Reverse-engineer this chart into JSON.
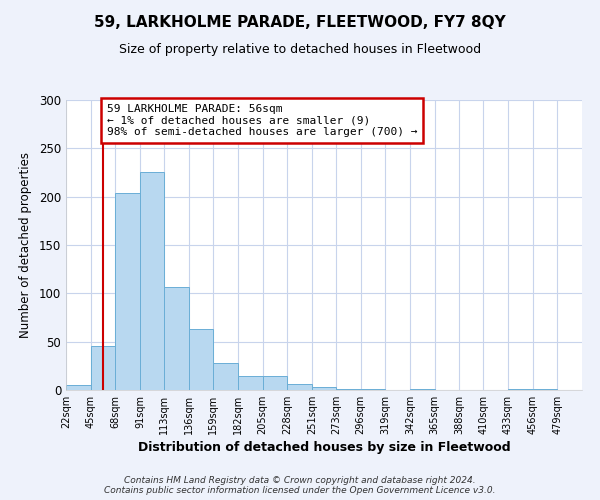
{
  "title": "59, LARKHOLME PARADE, FLEETWOOD, FY7 8QY",
  "subtitle": "Size of property relative to detached houses in Fleetwood",
  "xlabel": "Distribution of detached houses by size in Fleetwood",
  "ylabel": "Number of detached properties",
  "bar_color": "#b8d8f0",
  "bar_edge_color": "#6aaed6",
  "bar_left_edges": [
    22,
    45,
    68,
    91,
    113,
    136,
    159,
    182,
    205,
    228,
    251,
    273,
    296,
    319,
    342,
    365,
    388,
    410,
    433,
    456
  ],
  "bar_widths": [
    23,
    23,
    23,
    22,
    23,
    23,
    23,
    23,
    23,
    23,
    22,
    23,
    23,
    23,
    23,
    23,
    22,
    23,
    23,
    23
  ],
  "bar_heights": [
    5,
    46,
    204,
    226,
    107,
    63,
    28,
    15,
    14,
    6,
    3,
    1,
    1,
    0,
    1,
    0,
    0,
    0,
    1,
    1
  ],
  "x_tick_labels": [
    "22sqm",
    "45sqm",
    "68sqm",
    "91sqm",
    "113sqm",
    "136sqm",
    "159sqm",
    "182sqm",
    "205sqm",
    "228sqm",
    "251sqm",
    "273sqm",
    "296sqm",
    "319sqm",
    "342sqm",
    "365sqm",
    "388sqm",
    "410sqm",
    "433sqm",
    "456sqm",
    "479sqm"
  ],
  "x_tick_positions": [
    22,
    45,
    68,
    91,
    113,
    136,
    159,
    182,
    205,
    228,
    251,
    273,
    296,
    319,
    342,
    365,
    388,
    410,
    433,
    456,
    479
  ],
  "ylim": [
    0,
    300
  ],
  "yticks": [
    0,
    50,
    100,
    150,
    200,
    250,
    300
  ],
  "red_line_x": 56,
  "annotation_text": "59 LARKHOLME PARADE: 56sqm\n← 1% of detached houses are smaller (9)\n98% of semi-detached houses are larger (700) →",
  "annotation_box_color": "#ffffff",
  "annotation_box_edge_color": "#cc0000",
  "footer_line1": "Contains HM Land Registry data © Crown copyright and database right 2024.",
  "footer_line2": "Contains public sector information licensed under the Open Government Licence v3.0.",
  "background_color": "#eef2fb",
  "plot_background_color": "#ffffff",
  "grid_color": "#c8d4ec"
}
